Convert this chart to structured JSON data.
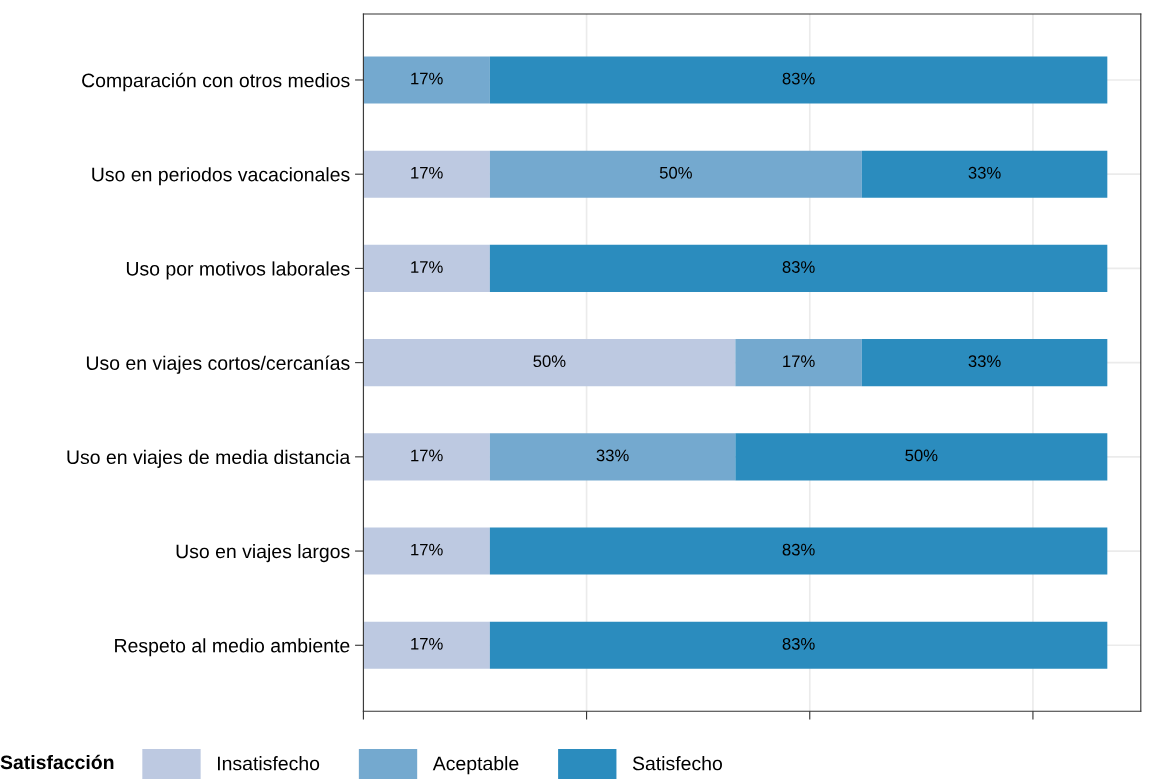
{
  "chart_data": {
    "type": "bar",
    "orientation": "horizontal",
    "stacked": true,
    "categories": [
      "Comparación con otros medios",
      "Uso en periodos vacacionales",
      "Uso por motivos laborales",
      "Uso en viajes cortos/cercanías",
      "Uso en viajes de media distancia",
      "Uso en viajes largos",
      "Respeto al medio ambiente"
    ],
    "series": [
      {
        "name": "Insatisfecho",
        "color": "#bdc9e1",
        "values": [
          null,
          17,
          17,
          50,
          17,
          17,
          17
        ],
        "value_labels": [
          null,
          "17%",
          "17%",
          "50%",
          "17%",
          "17%",
          "17%"
        ]
      },
      {
        "name": "Aceptable",
        "color": "#74a9cf",
        "values": [
          17,
          50,
          null,
          17,
          33,
          null,
          null
        ],
        "value_labels": [
          "17%",
          "50%",
          null,
          "17%",
          "33%",
          null,
          null
        ]
      },
      {
        "name": "Satisfecho",
        "color": "#2b8cbe",
        "values": [
          83,
          33,
          83,
          33,
          50,
          83,
          83
        ],
        "value_labels": [
          "83%",
          "33%",
          "83%",
          "33%",
          "50%",
          "83%",
          "83%"
        ]
      }
    ],
    "legend_title": "Satisfacción",
    "legend": "bottom",
    "tick_labels": "y",
    "grid": true
  }
}
